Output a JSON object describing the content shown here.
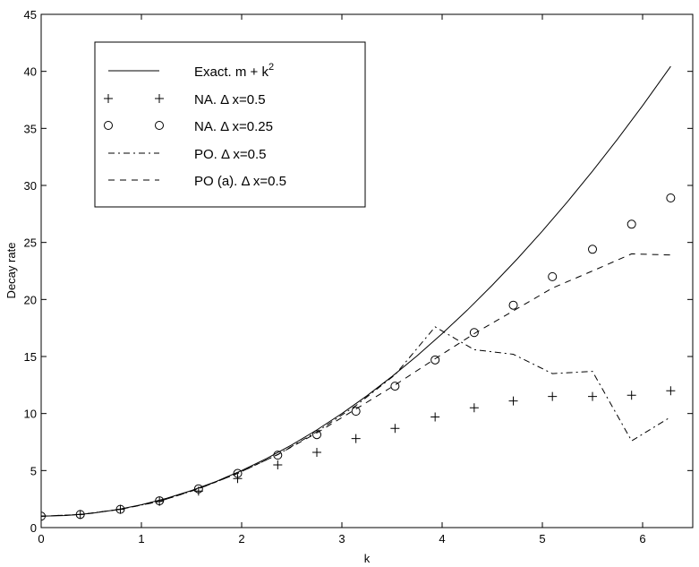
{
  "chart_data": {
    "type": "line",
    "xlabel": "k",
    "ylabel": "Decay rate",
    "xlim": [
      0,
      6.5
    ],
    "ylim": [
      0,
      45
    ],
    "x_ticks": [
      0,
      1,
      2,
      3,
      4,
      5,
      6
    ],
    "y_ticks": [
      0,
      5,
      10,
      15,
      20,
      25,
      30,
      35,
      40,
      45
    ],
    "grid": false,
    "legend_position": "top-left",
    "series": [
      {
        "name": "Exact. m + k",
        "name_superscript": "2",
        "style": "solid",
        "x": [
          0,
          0.25,
          0.5,
          0.75,
          1.0,
          1.25,
          1.5,
          1.75,
          2.0,
          2.25,
          2.5,
          2.75,
          3.0,
          3.25,
          3.5,
          3.75,
          4.0,
          4.25,
          4.5,
          4.75,
          5.0,
          5.25,
          5.5,
          5.75,
          6.0,
          6.28
        ],
        "y": [
          1.0,
          1.06,
          1.25,
          1.56,
          2.0,
          2.56,
          3.25,
          4.06,
          5.0,
          6.06,
          7.25,
          8.56,
          10.0,
          11.56,
          13.25,
          15.06,
          17.0,
          19.06,
          21.25,
          23.56,
          26.0,
          28.56,
          31.25,
          34.06,
          37.0,
          40.44
        ]
      },
      {
        "name": "NA. Δ x=0.5",
        "style": "plus-markers",
        "x": [
          0,
          0.39,
          0.79,
          1.18,
          1.57,
          1.96,
          2.36,
          2.75,
          3.14,
          3.53,
          3.93,
          4.32,
          4.71,
          5.1,
          5.5,
          5.89,
          6.28
        ],
        "y": [
          1.0,
          1.15,
          1.6,
          2.3,
          3.2,
          4.3,
          5.5,
          6.6,
          7.8,
          8.7,
          9.7,
          10.5,
          11.1,
          11.5,
          11.5,
          11.6,
          12.0
        ]
      },
      {
        "name": "NA. Δ x=0.25",
        "style": "circle-markers",
        "x": [
          0,
          0.39,
          0.79,
          1.18,
          1.57,
          1.96,
          2.36,
          2.75,
          3.14,
          3.53,
          3.93,
          4.32,
          4.71,
          5.1,
          5.5,
          5.89,
          6.28
        ],
        "y": [
          1.0,
          1.15,
          1.6,
          2.35,
          3.4,
          4.75,
          6.35,
          8.15,
          10.2,
          12.4,
          14.7,
          17.1,
          19.5,
          22.0,
          24.4,
          26.6,
          28.9
        ]
      },
      {
        "name": "PO. Δ x=0.5",
        "style": "dash-dot",
        "x": [
          0,
          0.39,
          0.79,
          1.18,
          1.57,
          1.96,
          2.36,
          2.75,
          3.14,
          3.53,
          3.93,
          4.32,
          4.71,
          5.1,
          5.5,
          5.89,
          6.28
        ],
        "y": [
          1.0,
          1.15,
          1.6,
          2.3,
          3.4,
          4.75,
          6.4,
          8.4,
          10.7,
          13.4,
          17.6,
          15.6,
          15.2,
          13.5,
          13.7,
          7.6,
          9.7
        ]
      },
      {
        "name": "PO (a). Δ x=0.5",
        "style": "dashed",
        "x": [
          0,
          0.39,
          0.79,
          1.18,
          1.57,
          1.96,
          2.36,
          2.75,
          3.14,
          3.53,
          3.93,
          4.32,
          4.71,
          5.1,
          5.5,
          5.89,
          6.28
        ],
        "y": [
          1.0,
          1.15,
          1.6,
          2.3,
          3.4,
          4.75,
          6.4,
          8.3,
          10.4,
          12.5,
          14.8,
          17.0,
          19.0,
          21.0,
          22.5,
          24.0,
          23.9
        ]
      }
    ]
  }
}
